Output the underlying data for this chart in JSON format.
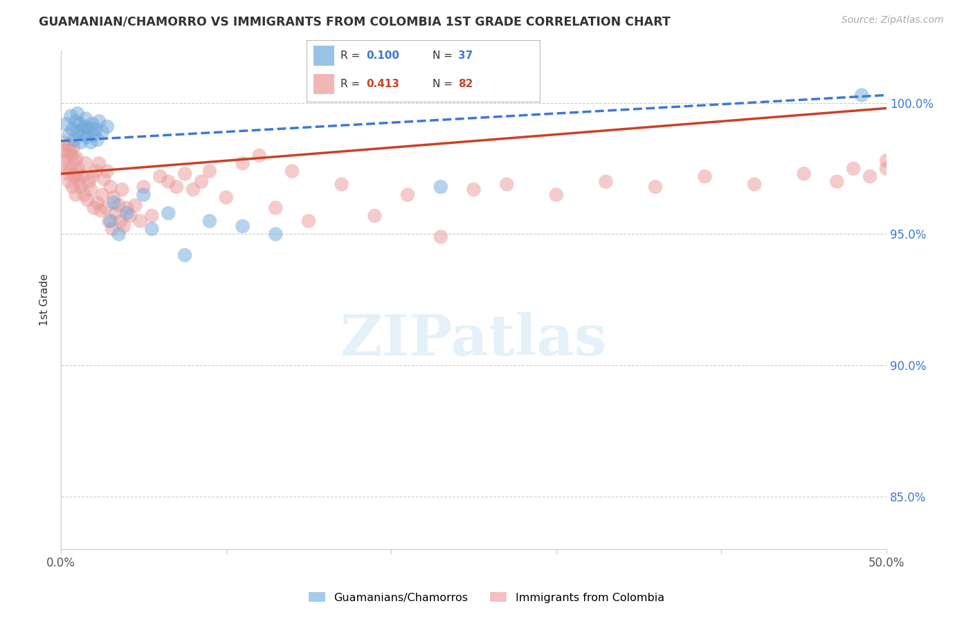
{
  "title": "GUAMANIAN/CHAMORRO VS IMMIGRANTS FROM COLOMBIA 1ST GRADE CORRELATION CHART",
  "source": "Source: ZipAtlas.com",
  "ylabel": "1st Grade",
  "legend_blue_label": "Guamanians/Chamorros",
  "legend_pink_label": "Immigrants from Colombia",
  "R_blue": 0.1,
  "N_blue": 37,
  "R_pink": 0.413,
  "N_pink": 82,
  "blue_color": "#6fa8dc",
  "pink_color": "#ea9999",
  "blue_line_color": "#3c78d8",
  "pink_line_color": "#cc4125",
  "xlim": [
    0.0,
    50.0
  ],
  "ylim": [
    83.0,
    102.0
  ],
  "yticks": [
    85,
    90,
    95,
    100
  ],
  "ytick_labels": [
    "85.0%",
    "90.0%",
    "95.0%",
    "100.0%"
  ],
  "xtick_positions": [
    0,
    10,
    20,
    30,
    40,
    50
  ],
  "xtick_labels": [
    "0.0%",
    "",
    "",
    "",
    "",
    "50.0%"
  ],
  "background_color": "#ffffff",
  "grid_color": "#cccccc",
  "watermark_text": "ZIPatlas",
  "blue_points_x": [
    0.3,
    0.5,
    0.6,
    0.7,
    0.8,
    0.9,
    1.0,
    1.0,
    1.1,
    1.2,
    1.3,
    1.4,
    1.5,
    1.5,
    1.6,
    1.7,
    1.8,
    1.9,
    2.0,
    2.1,
    2.2,
    2.3,
    2.5,
    2.8,
    3.0,
    3.2,
    3.5,
    4.0,
    5.0,
    5.5,
    6.5,
    7.5,
    9.0,
    11.0,
    13.0,
    23.0,
    48.5
  ],
  "blue_points_y": [
    99.2,
    98.8,
    99.5,
    99.0,
    98.6,
    99.3,
    98.9,
    99.6,
    99.2,
    98.5,
    99.0,
    98.8,
    99.4,
    99.1,
    98.7,
    99.0,
    98.5,
    99.2,
    98.8,
    99.0,
    98.6,
    99.3,
    98.9,
    99.1,
    95.5,
    96.2,
    95.0,
    95.8,
    96.5,
    95.2,
    95.8,
    94.2,
    95.5,
    95.3,
    95.0,
    96.8,
    100.3
  ],
  "pink_points_x": [
    0.15,
    0.2,
    0.25,
    0.3,
    0.35,
    0.4,
    0.45,
    0.5,
    0.55,
    0.6,
    0.65,
    0.7,
    0.75,
    0.8,
    0.85,
    0.9,
    0.95,
    1.0,
    1.05,
    1.1,
    1.2,
    1.3,
    1.4,
    1.5,
    1.6,
    1.7,
    1.8,
    1.9,
    2.0,
    2.1,
    2.2,
    2.3,
    2.4,
    2.5,
    2.6,
    2.7,
    2.8,
    2.9,
    3.0,
    3.1,
    3.2,
    3.3,
    3.5,
    3.6,
    3.7,
    3.8,
    4.0,
    4.2,
    4.5,
    4.8,
    5.0,
    5.5,
    6.0,
    6.5,
    7.0,
    7.5,
    8.0,
    8.5,
    9.0,
    10.0,
    11.0,
    12.0,
    13.0,
    14.0,
    15.0,
    17.0,
    19.0,
    21.0,
    23.0,
    25.0,
    27.0,
    30.0,
    33.0,
    36.0,
    39.0,
    42.0,
    45.0,
    47.0,
    48.0,
    49.0,
    50.0,
    50.0
  ],
  "pink_points_y": [
    98.5,
    97.8,
    98.2,
    97.5,
    98.0,
    97.3,
    98.4,
    97.0,
    98.2,
    97.5,
    98.0,
    96.8,
    98.3,
    97.2,
    97.8,
    96.5,
    97.9,
    97.3,
    97.5,
    97.0,
    96.8,
    97.2,
    96.5,
    97.7,
    96.3,
    97.0,
    96.7,
    97.2,
    96.0,
    97.4,
    96.2,
    97.7,
    95.9,
    96.5,
    97.1,
    96.0,
    97.4,
    95.5,
    96.8,
    95.2,
    96.4,
    95.8,
    96.1,
    95.5,
    96.7,
    95.3,
    96.0,
    95.7,
    96.1,
    95.5,
    96.8,
    95.7,
    97.2,
    97.0,
    96.8,
    97.3,
    96.7,
    97.0,
    97.4,
    96.4,
    97.7,
    98.0,
    96.0,
    97.4,
    95.5,
    96.9,
    95.7,
    96.5,
    94.9,
    96.7,
    96.9,
    96.5,
    97.0,
    96.8,
    97.2,
    96.9,
    97.3,
    97.0,
    97.5,
    97.2,
    97.8,
    97.5
  ],
  "blue_trend_x0": 0.0,
  "blue_trend_y0": 98.55,
  "blue_trend_x1": 50.0,
  "blue_trend_y1": 100.3,
  "pink_trend_x0": 0.0,
  "pink_trend_y0": 97.3,
  "pink_trend_x1": 50.0,
  "pink_trend_y1": 99.8
}
